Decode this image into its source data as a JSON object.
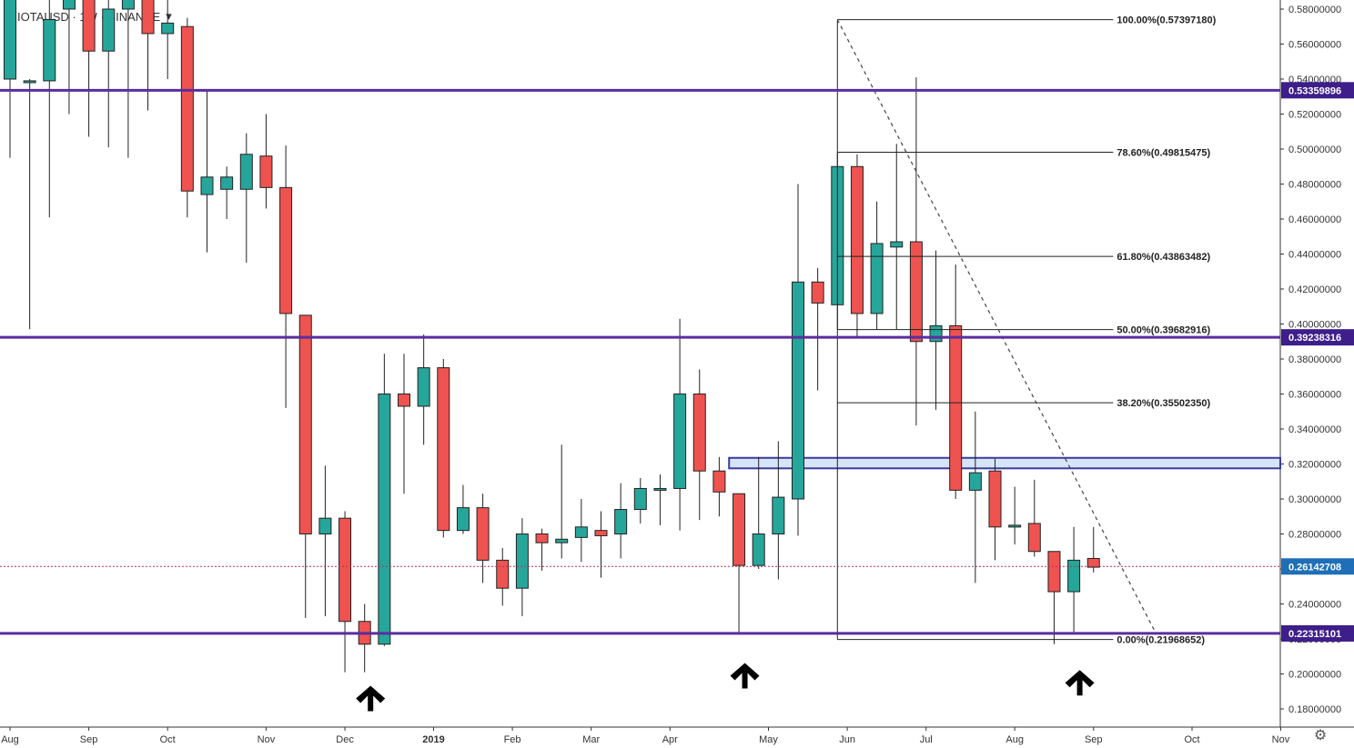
{
  "header": {
    "symbol": "IOTAUSD",
    "interval": "1W",
    "exchange": "BINANCE",
    "title": "IOTAUSD · 1W · BINANCE",
    "dropdown_icon": "chevron-down-icon"
  },
  "colors": {
    "up": "#26a69a",
    "down": "#ef5350",
    "level_line": "#5b2d9e",
    "fib_line": "#222222",
    "zone_fill": "#d6e4f7",
    "zone_border": "#3b3b9e",
    "current_price_line": "#b2325a",
    "current_price_tag": "#1e6fb8",
    "level_tag": "#3d1e8a"
  },
  "settings_icon": "gear-icon",
  "chart_data": {
    "type": "candlestick",
    "title": "IOTAUSD · 1W · BINANCE",
    "y_axis_ticks": [
      "0.58000000",
      "0.56000000",
      "0.54000000",
      "0.52000000",
      "0.50000000",
      "0.48000000",
      "0.46000000",
      "0.44000000",
      "0.42000000",
      "0.40000000",
      "0.38000000",
      "0.36000000",
      "0.34000000",
      "0.32000000",
      "0.30000000",
      "0.28000000",
      "0.26000000",
      "0.24000000",
      "0.22000000",
      "0.20000000",
      "0.18000000"
    ],
    "x_axis_ticks": [
      {
        "label": "Aug",
        "week": 0
      },
      {
        "label": "Sep",
        "week": 4
      },
      {
        "label": "Oct",
        "week": 8
      },
      {
        "label": "Nov",
        "week": 13
      },
      {
        "label": "Dec",
        "week": 17
      },
      {
        "label": "2019",
        "week": 21.5
      },
      {
        "label": "Feb",
        "week": 25.5
      },
      {
        "label": "Mar",
        "week": 29.5
      },
      {
        "label": "Apr",
        "week": 33.5
      },
      {
        "label": "May",
        "week": 38.5
      },
      {
        "label": "Jun",
        "week": 42.5
      },
      {
        "label": "Jul",
        "week": 46.5
      },
      {
        "label": "Aug",
        "week": 51
      },
      {
        "label": "Sep",
        "week": 55
      },
      {
        "label": "Oct",
        "week": 60
      },
      {
        "label": "Nov",
        "week": 64.5
      }
    ],
    "candles": [
      {
        "o": 0.54,
        "h": 0.6,
        "l": 0.495,
        "c": 0.59
      },
      {
        "o": 0.539,
        "h": 0.54,
        "l": 0.397,
        "c": 0.539
      },
      {
        "o": 0.539,
        "h": 0.59,
        "l": 0.461,
        "c": 0.574
      },
      {
        "o": 0.58,
        "h": 0.6,
        "l": 0.52,
        "c": 0.6
      },
      {
        "o": 0.6,
        "h": 0.6,
        "l": 0.507,
        "c": 0.556
      },
      {
        "o": 0.556,
        "h": 0.6,
        "l": 0.501,
        "c": 0.58
      },
      {
        "o": 0.58,
        "h": 0.6,
        "l": 0.495,
        "c": 0.6
      },
      {
        "o": 0.6,
        "h": 0.6,
        "l": 0.522,
        "c": 0.566
      },
      {
        "o": 0.566,
        "h": 0.59,
        "l": 0.54,
        "c": 0.572
      },
      {
        "o": 0.57,
        "h": 0.575,
        "l": 0.461,
        "c": 0.476
      },
      {
        "o": 0.474,
        "h": 0.533,
        "l": 0.441,
        "c": 0.484
      },
      {
        "o": 0.477,
        "h": 0.49,
        "l": 0.46,
        "c": 0.484
      },
      {
        "o": 0.477,
        "h": 0.509,
        "l": 0.435,
        "c": 0.497
      },
      {
        "o": 0.496,
        "h": 0.52,
        "l": 0.466,
        "c": 0.478
      },
      {
        "o": 0.478,
        "h": 0.502,
        "l": 0.352,
        "c": 0.406
      },
      {
        "o": 0.405,
        "h": 0.405,
        "l": 0.232,
        "c": 0.28
      },
      {
        "o": 0.28,
        "h": 0.319,
        "l": 0.233,
        "c": 0.289
      },
      {
        "o": 0.289,
        "h": 0.293,
        "l": 0.201,
        "c": 0.23
      },
      {
        "o": 0.23,
        "h": 0.24,
        "l": 0.201,
        "c": 0.217
      },
      {
        "o": 0.217,
        "h": 0.383,
        "l": 0.216,
        "c": 0.36
      },
      {
        "o": 0.36,
        "h": 0.383,
        "l": 0.303,
        "c": 0.353
      },
      {
        "o": 0.353,
        "h": 0.394,
        "l": 0.331,
        "c": 0.375
      },
      {
        "o": 0.375,
        "h": 0.38,
        "l": 0.278,
        "c": 0.282
      },
      {
        "o": 0.282,
        "h": 0.308,
        "l": 0.28,
        "c": 0.295
      },
      {
        "o": 0.295,
        "h": 0.303,
        "l": 0.252,
        "c": 0.265
      },
      {
        "o": 0.265,
        "h": 0.272,
        "l": 0.239,
        "c": 0.249
      },
      {
        "o": 0.249,
        "h": 0.289,
        "l": 0.233,
        "c": 0.28
      },
      {
        "o": 0.28,
        "h": 0.283,
        "l": 0.259,
        "c": 0.275
      },
      {
        "o": 0.275,
        "h": 0.331,
        "l": 0.266,
        "c": 0.277
      },
      {
        "o": 0.278,
        "h": 0.3,
        "l": 0.264,
        "c": 0.284
      },
      {
        "o": 0.282,
        "h": 0.293,
        "l": 0.255,
        "c": 0.279
      },
      {
        "o": 0.28,
        "h": 0.309,
        "l": 0.266,
        "c": 0.294
      },
      {
        "o": 0.294,
        "h": 0.312,
        "l": 0.286,
        "c": 0.306
      },
      {
        "o": 0.306,
        "h": 0.314,
        "l": 0.285,
        "c": 0.306
      },
      {
        "o": 0.306,
        "h": 0.403,
        "l": 0.282,
        "c": 0.36
      },
      {
        "o": 0.36,
        "h": 0.374,
        "l": 0.288,
        "c": 0.316
      },
      {
        "o": 0.316,
        "h": 0.324,
        "l": 0.29,
        "c": 0.304
      },
      {
        "o": 0.303,
        "h": 0.303,
        "l": 0.223,
        "c": 0.262
      },
      {
        "o": 0.262,
        "h": 0.324,
        "l": 0.26,
        "c": 0.28
      },
      {
        "o": 0.28,
        "h": 0.333,
        "l": 0.254,
        "c": 0.301
      },
      {
        "o": 0.3,
        "h": 0.48,
        "l": 0.279,
        "c": 0.424
      },
      {
        "o": 0.424,
        "h": 0.432,
        "l": 0.362,
        "c": 0.412
      },
      {
        "o": 0.411,
        "h": 0.498,
        "l": 0.397,
        "c": 0.49
      },
      {
        "o": 0.49,
        "h": 0.497,
        "l": 0.393,
        "c": 0.406
      },
      {
        "o": 0.406,
        "h": 0.47,
        "l": 0.397,
        "c": 0.446
      },
      {
        "o": 0.444,
        "h": 0.503,
        "l": 0.397,
        "c": 0.447
      },
      {
        "o": 0.447,
        "h": 0.541,
        "l": 0.342,
        "c": 0.39
      },
      {
        "o": 0.39,
        "h": 0.442,
        "l": 0.351,
        "c": 0.399
      },
      {
        "o": 0.399,
        "h": 0.434,
        "l": 0.3,
        "c": 0.305
      },
      {
        "o": 0.305,
        "h": 0.35,
        "l": 0.252,
        "c": 0.315
      },
      {
        "o": 0.316,
        "h": 0.323,
        "l": 0.265,
        "c": 0.284
      },
      {
        "o": 0.284,
        "h": 0.307,
        "l": 0.274,
        "c": 0.285
      },
      {
        "o": 0.286,
        "h": 0.311,
        "l": 0.267,
        "c": 0.27
      },
      {
        "o": 0.27,
        "h": 0.27,
        "l": 0.217,
        "c": 0.247
      },
      {
        "o": 0.247,
        "h": 0.284,
        "l": 0.224,
        "c": 0.265
      },
      {
        "o": 0.266,
        "h": 0.284,
        "l": 0.258,
        "c": 0.261
      }
    ],
    "horizontal_levels": [
      {
        "value": 0.53359896,
        "label": "0.53359896"
      },
      {
        "value": 0.39238316,
        "label": "0.39238316"
      },
      {
        "value": 0.22315101,
        "label": "0.22315101"
      }
    ],
    "current_price": {
      "value": 0.26142708,
      "label": "0.26142708"
    },
    "zone": {
      "from_week": 36.5,
      "to_week": 68,
      "low": 0.3175,
      "high": 0.3235
    },
    "fibonacci": {
      "from_week": 42,
      "to_week": 56,
      "levels": [
        {
          "value": 0.5739718,
          "label": "100.00%(0.57397180)"
        },
        {
          "value": 0.49815475,
          "label": "78.60%(0.49815475)"
        },
        {
          "value": 0.43863482,
          "label": "61.80%(0.43863482)"
        },
        {
          "value": 0.39682916,
          "label": "50.00%(0.39682916)"
        },
        {
          "value": 0.3550235,
          "label": "38.20%(0.35502350)"
        },
        {
          "value": 0.21968652,
          "label": "0.00%(0.21968652)"
        }
      ]
    },
    "trendline": {
      "from_week": 42,
      "from_value": 0.5739718,
      "to_week": 58.2,
      "to_value": 0.2225
    },
    "arrows": [
      {
        "week": 18.3,
        "value": 0.187
      },
      {
        "week": 37.3,
        "value": 0.2
      },
      {
        "week": 54.3,
        "value": 0.196
      }
    ],
    "ylim": [
      0.17,
      0.585
    ]
  }
}
